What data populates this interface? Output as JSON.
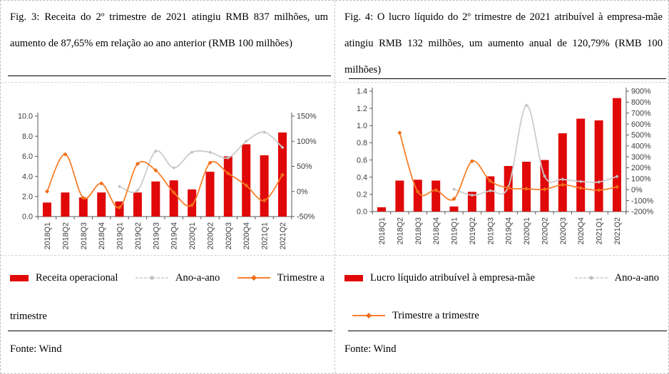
{
  "panels": [
    {
      "title": "Fig. 3: Receita do 2º trimestre de 2021 atingiu RMB 837 milhões, um aumento de 87,65% em relação ao ano anterior (RMB 100 milhões)",
      "source": "Fonte: Wind",
      "legend": [
        {
          "label": "Receita operacional",
          "marker": "bar",
          "color": "#e00808"
        },
        {
          "label": "Ano-a-ano",
          "marker": "line-dot",
          "color": "#cccccc"
        },
        {
          "label": "Trimestre a trimestre",
          "marker": "line-diamond",
          "color": "#f87f2b"
        }
      ]
    },
    {
      "title": "Fig. 4: O lucro líquido do 2º trimestre de 2021 atribuível à empresa-mãe atingiu RMB 132 milhões, um aumento anual de 120,79% (RMB 100 milhões)",
      "source": "Fonte: Wind",
      "legend": [
        {
          "label": "Lucro líquido atribuível à empresa-mãe",
          "marker": "bar",
          "color": "#e00808"
        },
        {
          "label": "Ano-a-ano",
          "marker": "line-dot",
          "color": "#cccccc"
        },
        {
          "label": "Trimestre a trimestre",
          "marker": "line-diamond",
          "color": "#f87f2b"
        }
      ]
    }
  ],
  "chart_data": [
    {
      "type": "bar",
      "title": "Receita trimestral (RMB 100 milhões) com variação Ano-a-ano e Trimestre a trimestre",
      "categories": [
        "2018Q1",
        "2018Q2",
        "2018Q3",
        "2018Q4",
        "2019Q1",
        "2019Q2",
        "2019Q3",
        "2019Q4",
        "2020Q1",
        "2020Q2",
        "2020Q3",
        "2020Q4",
        "2021Q1",
        "2021Q2"
      ],
      "series": [
        {
          "name": "Receita operacional",
          "type": "bar",
          "axis": "left",
          "color": "#e00808",
          "values": [
            1.4,
            2.4,
            1.9,
            2.4,
            1.5,
            2.4,
            3.5,
            3.6,
            2.7,
            4.46,
            6.0,
            7.2,
            6.1,
            8.37
          ]
        },
        {
          "name": "Ano-a-ano",
          "type": "line",
          "axis": "right",
          "color": "#cccccc",
          "marker_color": "#c3c3c3",
          "values": [
            null,
            null,
            null,
            null,
            10,
            2,
            80,
            47,
            78,
            78,
            67,
            100,
            118,
            87.65
          ]
        },
        {
          "name": "Trimestre a trimestre",
          "type": "line",
          "axis": "right",
          "color": "#f87f2b",
          "marker_color": "#ef6c17",
          "values": [
            0,
            74,
            -13,
            16,
            -32,
            55,
            42,
            -2,
            -27,
            57,
            36,
            12,
            -18,
            33
          ]
        }
      ],
      "left_axis": {
        "min": 0,
        "max": 10,
        "ticks": [
          "10.0",
          "8.0",
          "6.0",
          "4.0",
          "2.0",
          "0.0"
        ]
      },
      "right_axis": {
        "min": -50,
        "max": 150,
        "ticks": [
          "150%",
          "100%",
          "50%",
          "0%",
          "-50%"
        ]
      },
      "legend_position": "bottom",
      "grid": false
    },
    {
      "type": "bar",
      "title": "Lucro líquido trimestral atribuível à empresa-mãe (RMB 100 milhões) com variação Ano-a-ano e Trimestre a trimestre",
      "categories": [
        "2018Q1",
        "2018Q2",
        "2018Q3",
        "2018Q4",
        "2019Q1",
        "2019Q2",
        "2019Q3",
        "2019Q4",
        "2020Q1",
        "2020Q2",
        "2020Q3",
        "2020Q4",
        "2021Q1",
        "2021Q2"
      ],
      "series": [
        {
          "name": "Lucro líquido atribuível à empresa-mãe",
          "type": "bar",
          "axis": "left",
          "color": "#e00808",
          "values": [
            0.05,
            0.36,
            0.37,
            0.36,
            0.06,
            0.23,
            0.41,
            0.53,
            0.58,
            0.6,
            0.91,
            1.08,
            1.06,
            1.32
          ]
        },
        {
          "name": "Ano-a-ano",
          "type": "line",
          "axis": "right",
          "color": "#cccccc",
          "marker_color": "#c3c3c3",
          "values": [
            null,
            null,
            null,
            null,
            5,
            -50,
            -10,
            25,
            770,
            125,
            95,
            75,
            70,
            120.79
          ]
        },
        {
          "name": "Trimestre a trimestre",
          "type": "line",
          "axis": "right",
          "color": "#f87f2b",
          "marker_color": "#ef6c17",
          "values": [
            null,
            520,
            -20,
            -5,
            -85,
            260,
            80,
            15,
            8,
            3,
            45,
            15,
            -5,
            25
          ]
        }
      ],
      "left_axis": {
        "min": 0,
        "max": 1.4,
        "ticks": [
          "1.4",
          "1.2",
          "1.0",
          "0.8",
          "0.6",
          "0.4",
          "0.2",
          "0.0"
        ]
      },
      "right_axis": {
        "min": -200,
        "max": 900,
        "ticks": [
          "900%",
          "800%",
          "700%",
          "600%",
          "500%",
          "400%",
          "300%",
          "200%",
          "100%",
          "0%",
          "-100%",
          "-200%"
        ]
      },
      "legend_position": "bottom",
      "grid": false
    }
  ]
}
